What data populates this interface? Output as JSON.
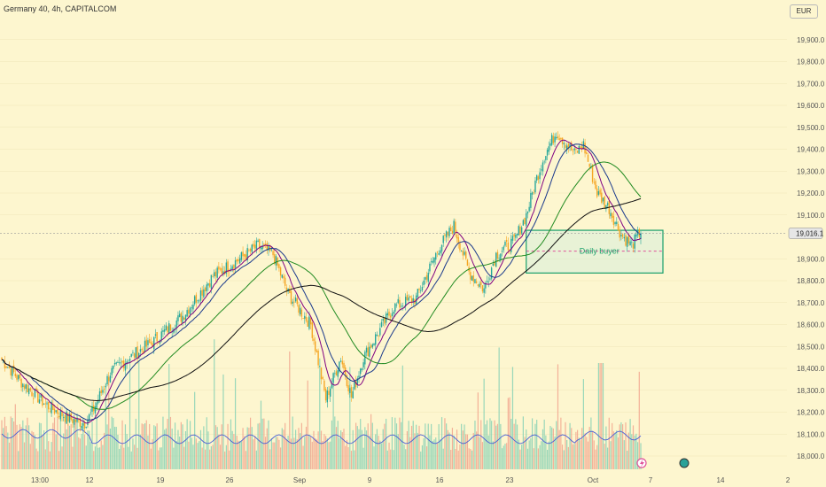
{
  "header": {
    "title": "Germany 40, 4h, CAPITALCOM",
    "currency": "EUR"
  },
  "chart_data": {
    "type": "candlestick",
    "y_ticks": [
      "19,900.0",
      "19,800.0",
      "19,700.0",
      "19,600.0",
      "19,500.0",
      "19,400.0",
      "19,300.0",
      "19,200.0",
      "19,100.0",
      "18,900.0",
      "18,800.0",
      "18,700.0",
      "18,600.0",
      "18,500.0",
      "18,400.0",
      "18,300.0",
      "18,200.0",
      "18,100.0",
      "18,000.0"
    ],
    "y_tick_values": [
      19900,
      19800,
      19700,
      19600,
      19500,
      19400,
      19300,
      19200,
      19100,
      18900,
      18800,
      18700,
      18600,
      18500,
      18400,
      18300,
      18200,
      18100,
      18000
    ],
    "ylim": [
      17960,
      20000
    ],
    "x_ticks": [
      "13:00",
      "12",
      "19",
      "26",
      "Sep",
      "9",
      "16",
      "23",
      "Oct",
      "7",
      "14",
      "2"
    ],
    "last_price": "19,016.1",
    "last_price_value": 19016.1,
    "price_anchors": [
      [
        0,
        18440
      ],
      [
        14,
        18330
      ],
      [
        30,
        18230
      ],
      [
        45,
        18170
      ],
      [
        55,
        18150
      ],
      [
        60,
        18200
      ],
      [
        72,
        18380
      ],
      [
        85,
        18450
      ],
      [
        100,
        18520
      ],
      [
        120,
        18640
      ],
      [
        140,
        18820
      ],
      [
        158,
        18900
      ],
      [
        170,
        18960
      ],
      [
        180,
        18920
      ],
      [
        190,
        18740
      ],
      [
        205,
        18600
      ],
      [
        215,
        18260
      ],
      [
        225,
        18450
      ],
      [
        232,
        18270
      ],
      [
        240,
        18450
      ],
      [
        260,
        18680
      ],
      [
        275,
        18720
      ],
      [
        290,
        18950
      ],
      [
        300,
        19050
      ],
      [
        310,
        18840
      ],
      [
        320,
        18760
      ],
      [
        328,
        18920
      ],
      [
        340,
        18980
      ],
      [
        348,
        19100
      ],
      [
        355,
        19270
      ],
      [
        360,
        19370
      ],
      [
        368,
        19480
      ],
      [
        380,
        19380
      ],
      [
        386,
        19420
      ],
      [
        395,
        19200
      ],
      [
        403,
        19130
      ],
      [
        411,
        19010
      ],
      [
        418,
        18960
      ],
      [
        423,
        19016
      ]
    ],
    "annotations": {
      "zone_label": "Daily buyer"
    },
    "colors": {
      "up": "#26a69a",
      "down": "#f5a623",
      "sma_fast": "#800080",
      "sma_mid": "#1b3a8c",
      "sma_slow": "#228b22",
      "sma_long": "#111111",
      "volume_avg": "#4a5fd6",
      "zone": "#1aa06b",
      "background": "#fdf6cf"
    }
  }
}
